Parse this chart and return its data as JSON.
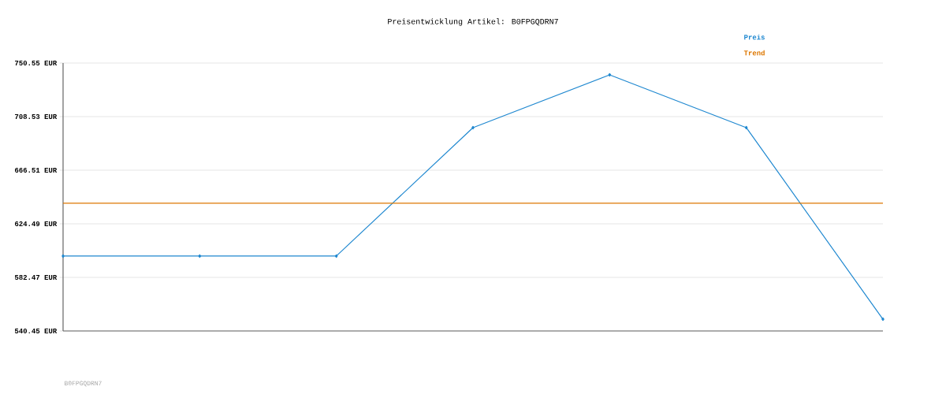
{
  "chart_data": {
    "type": "line",
    "title": "Preisentwicklung Artikel: B0FPGQDRN7",
    "categories": [
      null,
      null,
      null,
      null,
      null,
      null,
      null
    ],
    "series": [
      {
        "name": "Preis",
        "color": "#1f88d0",
        "values": [
          599.2,
          599.2,
          599.2,
          699.9,
          741.3,
          699.9,
          549.7
        ],
        "marker": "diamond"
      },
      {
        "name": "Trend",
        "color": "#dd7700",
        "values": [
          640.6,
          640.6,
          640.6,
          640.6,
          640.6,
          640.6,
          640.6
        ],
        "marker": "none"
      }
    ],
    "ylim": [
      540.45,
      750.55
    ],
    "yticks": [
      {
        "value": 540.45,
        "label": "540.45 EUR"
      },
      {
        "value": 582.47,
        "label": "582.47 EUR"
      },
      {
        "value": 624.49,
        "label": "624.49 EUR"
      },
      {
        "value": 666.51,
        "label": "666.51 EUR"
      },
      {
        "value": 708.53,
        "label": "708.53 EUR"
      },
      {
        "value": 750.55,
        "label": "750.55 EUR"
      }
    ],
    "grid": "y",
    "legend": "top right",
    "annotations": [
      "B0FPGQDRN7"
    ]
  }
}
